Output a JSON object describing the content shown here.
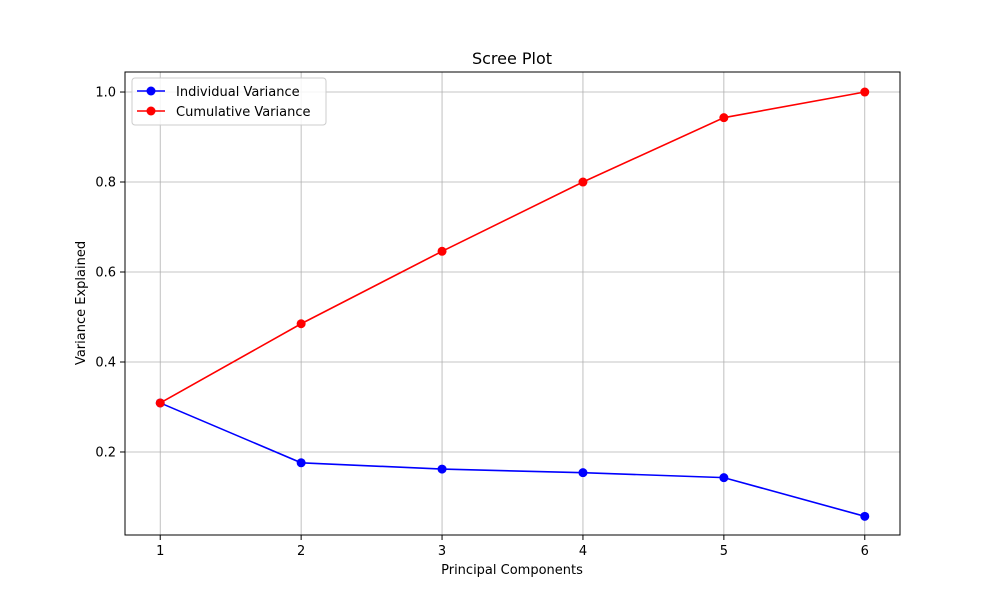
{
  "chart_data": {
    "type": "line",
    "title": "Scree Plot",
    "xlabel": "Principal Components",
    "ylabel": "Variance Explained",
    "x": [
      1,
      2,
      3,
      4,
      5,
      6
    ],
    "x_ticks": [
      "1",
      "2",
      "3",
      "4",
      "5",
      "6"
    ],
    "y_ticks": [
      "0.2",
      "0.4",
      "0.6",
      "0.8",
      "1.0"
    ],
    "y_tick_values": [
      0.2,
      0.4,
      0.6,
      0.8,
      1.0
    ],
    "xlim": [
      0.75,
      6.25
    ],
    "ylim": [
      0.0155,
      1.0445
    ],
    "grid": true,
    "legend_position": "top-left",
    "series": [
      {
        "name": "Individual Variance",
        "color": "#0000ff",
        "marker": "circle",
        "values": [
          0.309,
          0.176,
          0.162,
          0.154,
          0.143,
          0.057
        ]
      },
      {
        "name": "Cumulative Variance",
        "color": "#ff0000",
        "marker": "circle",
        "values": [
          0.309,
          0.485,
          0.646,
          0.8,
          0.943,
          1.0
        ]
      }
    ]
  }
}
